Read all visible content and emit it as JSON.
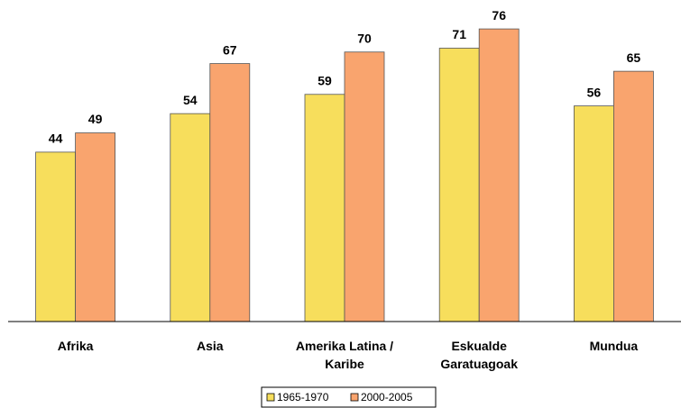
{
  "chart_data": {
    "type": "bar",
    "categories": [
      "Afrika",
      "Asia",
      "Amerika Latina /\nKaribe",
      "Eskualde\nGaratuagoak",
      "Mundua"
    ],
    "series": [
      {
        "name": "1965-1970",
        "color": "#f7de5c",
        "values": [
          44,
          54,
          59,
          71,
          56
        ]
      },
      {
        "name": "2000-2005",
        "color": "#f9a46e",
        "values": [
          49,
          67,
          70,
          76,
          65
        ]
      }
    ],
    "ylim": [
      0,
      80
    ],
    "grid": false,
    "legend": "bottom"
  }
}
